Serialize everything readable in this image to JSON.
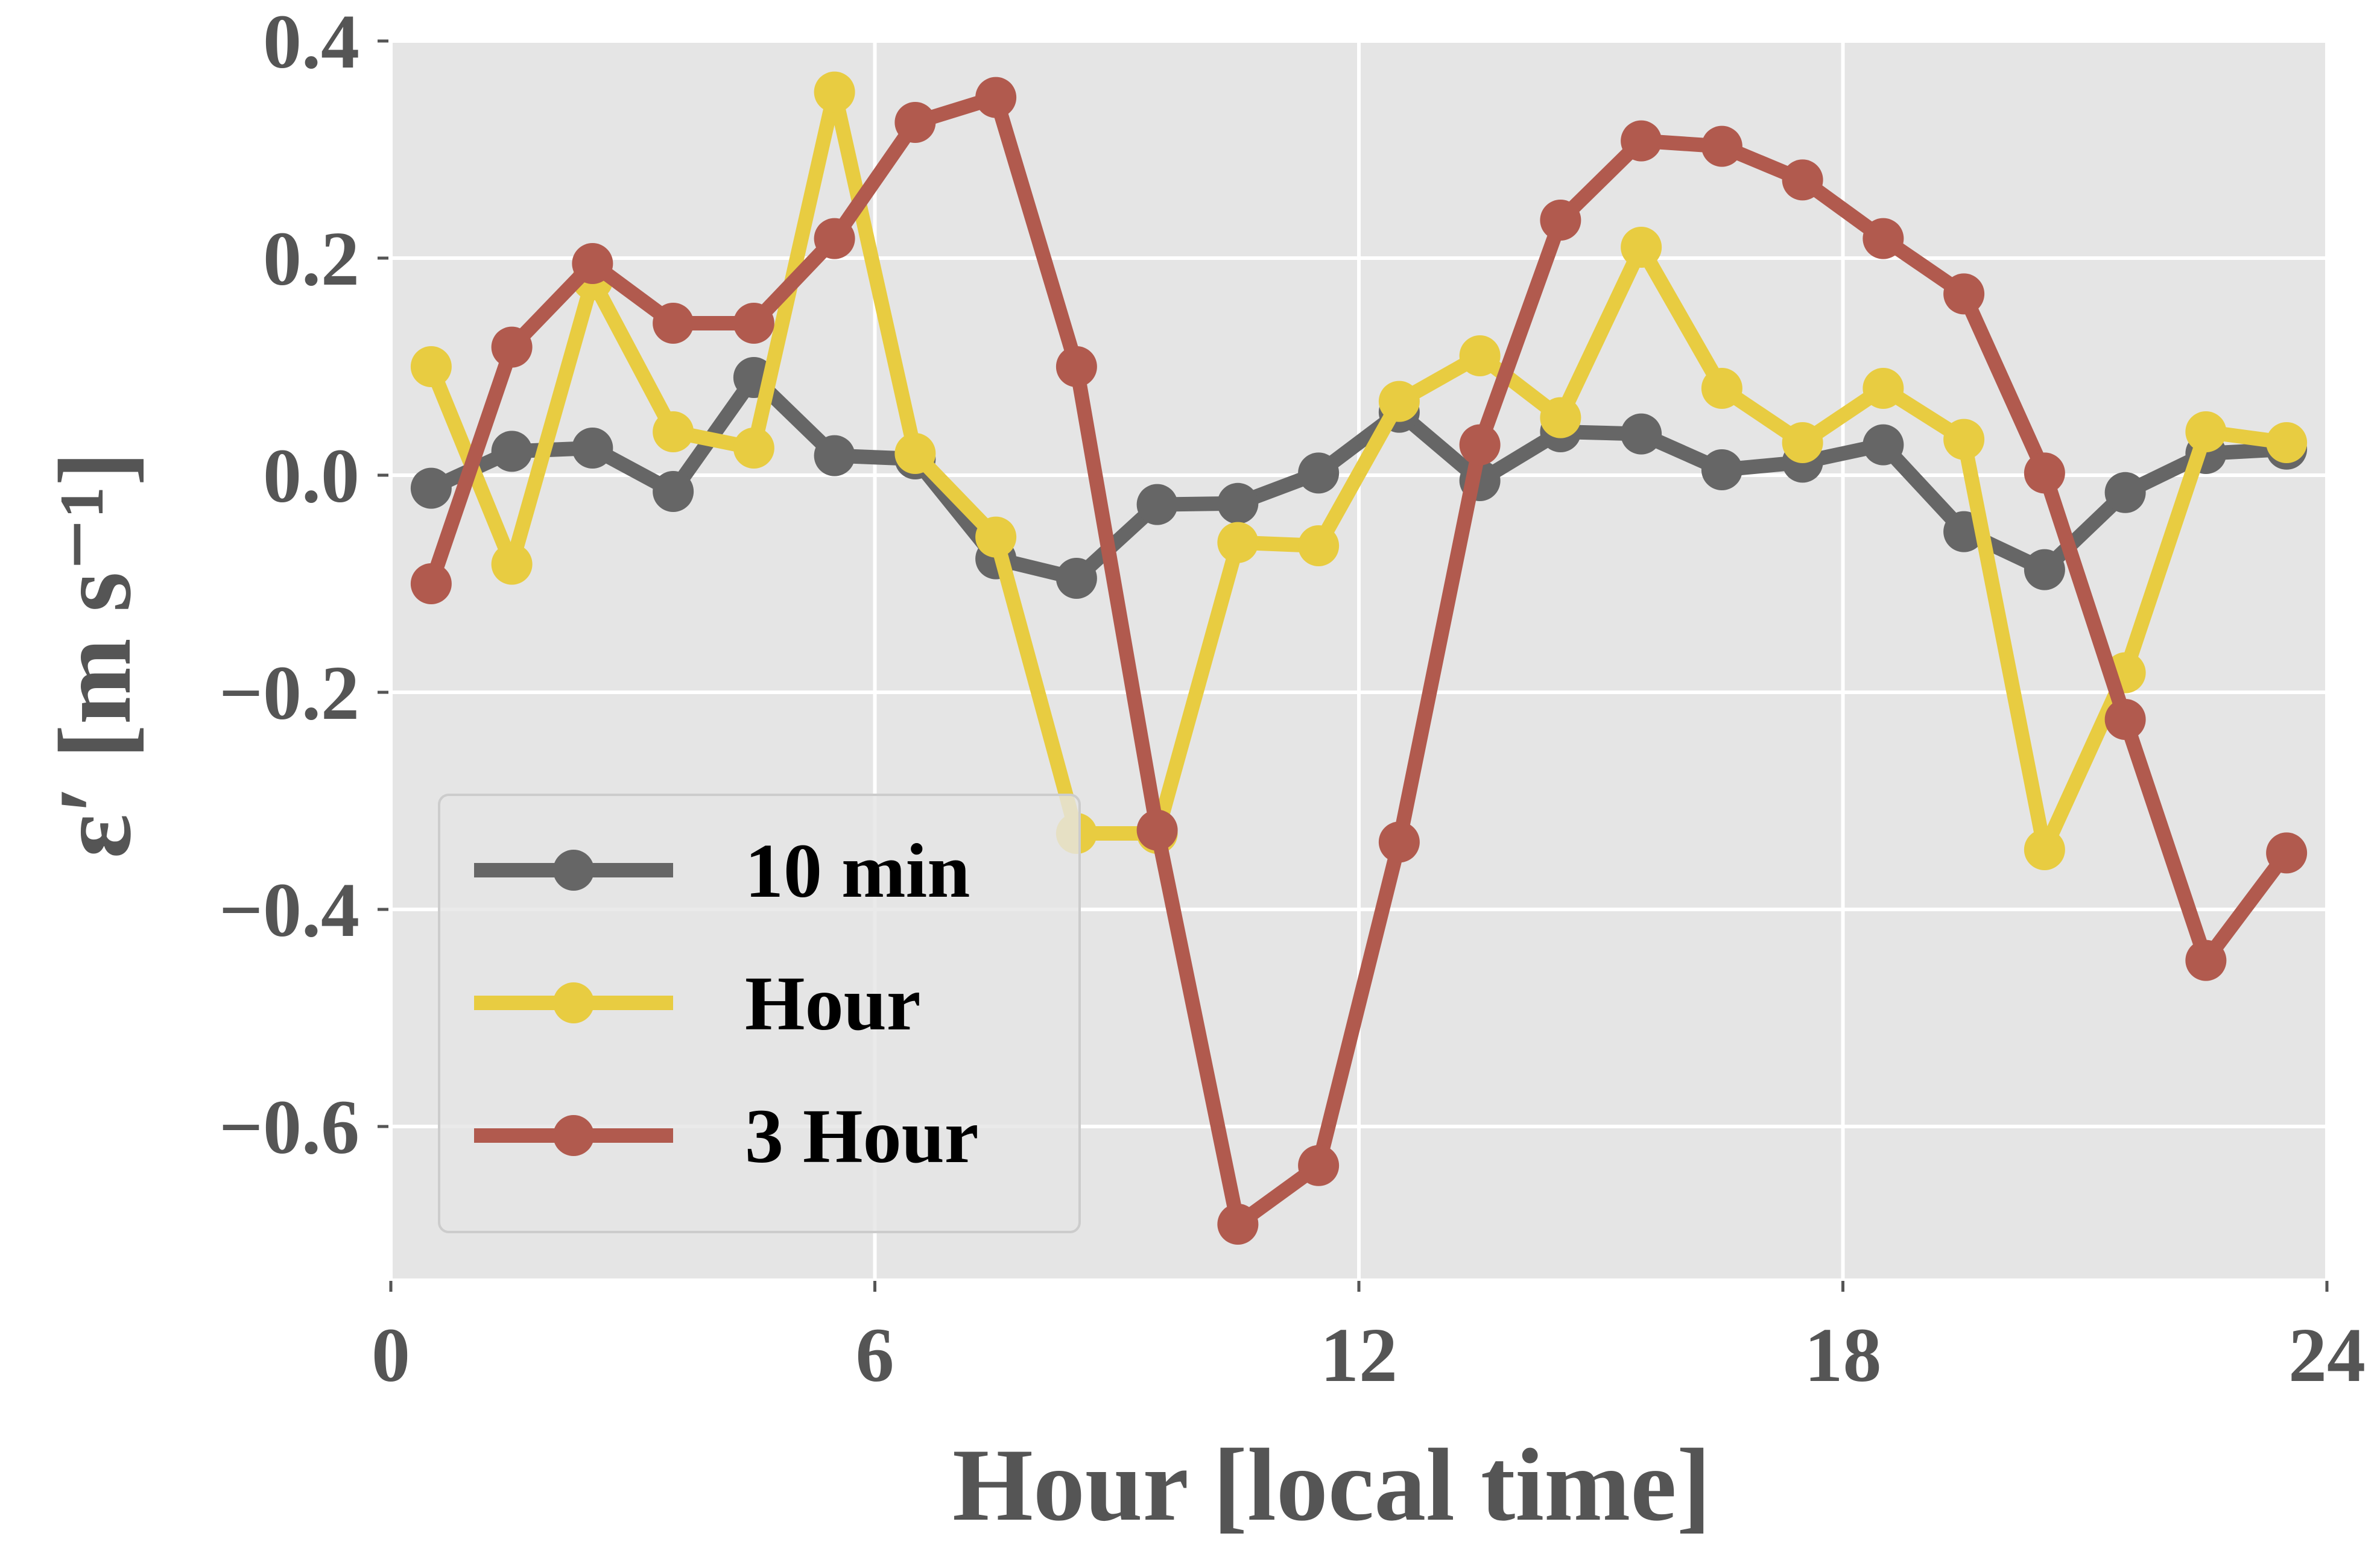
{
  "chart_data": {
    "type": "line",
    "xlabel": "Hour [local time]",
    "ylabel": "ε′ [m s⁻¹]",
    "xlim": [
      0,
      24
    ],
    "ylim": [
      -0.74,
      0.4
    ],
    "xticks": [
      0,
      6,
      12,
      18,
      24
    ],
    "yticks": [
      0.4,
      0.2,
      0.0,
      -0.2,
      -0.4,
      -0.6
    ],
    "xtick_labels": [
      "0",
      "6",
      "12",
      "18",
      "24"
    ],
    "ytick_labels": [
      "0.4",
      "0.2",
      "0.0",
      "−0.2",
      "−0.4",
      "−0.6"
    ],
    "grid": true,
    "legend_position": "lower-left",
    "x": [
      0.5,
      1.5,
      2.5,
      3.5,
      4.5,
      5.5,
      6.5,
      7.5,
      8.5,
      9.5,
      10.5,
      11.5,
      12.5,
      13.5,
      14.5,
      15.5,
      16.5,
      17.5,
      18.5,
      19.5,
      20.5,
      21.5,
      22.5,
      23.5
    ],
    "series": [
      {
        "name": "10 min",
        "color": "#666666",
        "values": [
          -0.012,
          0.022,
          0.025,
          -0.015,
          0.09,
          0.018,
          0.015,
          -0.077,
          -0.095,
          -0.027,
          -0.026,
          0.002,
          0.058,
          -0.005,
          0.04,
          0.038,
          0.005,
          0.012,
          0.028,
          -0.052,
          -0.087,
          -0.016,
          0.02,
          0.024
        ]
      },
      {
        "name": "Hour",
        "color": "#E8CC41",
        "values": [
          0.1,
          -0.082,
          0.18,
          0.04,
          0.025,
          0.353,
          0.02,
          -0.057,
          -0.33,
          -0.33,
          -0.062,
          -0.065,
          0.068,
          0.11,
          0.053,
          0.21,
          0.08,
          0.03,
          0.08,
          0.033,
          -0.345,
          -0.182,
          0.04,
          0.03
        ]
      },
      {
        "name": "3 Hour",
        "color": "#B15A4E",
        "values": [
          -0.1,
          0.118,
          0.195,
          0.14,
          0.14,
          0.218,
          0.325,
          0.348,
          0.1,
          -0.327,
          -0.69,
          -0.636,
          -0.338,
          0.028,
          0.235,
          0.308,
          0.303,
          0.272,
          0.218,
          0.167,
          0.002,
          -0.225,
          -0.447,
          -0.348
        ]
      }
    ]
  }
}
